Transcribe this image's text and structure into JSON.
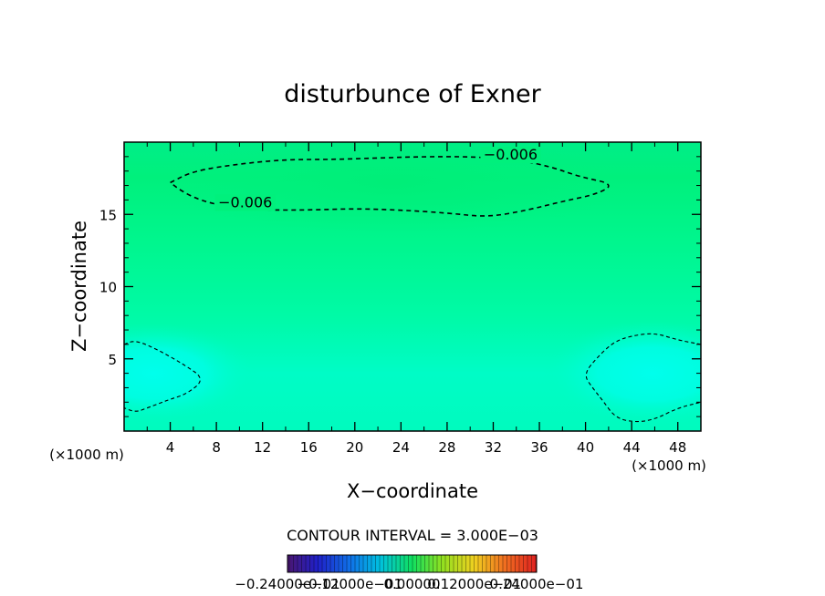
{
  "chart_data": {
    "type": "heatmap",
    "title": "disturbunce of Exner",
    "xlabel": "X−coordinate",
    "ylabel": "Z−coordinate",
    "x_unit": "(×1000 m)",
    "y_unit": "(×1000 m)",
    "xlim": [
      0,
      50
    ],
    "ylim": [
      0,
      20
    ],
    "x_ticks": [
      4,
      8,
      12,
      16,
      20,
      24,
      28,
      32,
      36,
      40,
      44,
      48
    ],
    "y_ticks": [
      5,
      10,
      15
    ],
    "contour_interval_text": "CONTOUR INTERVAL = 3.000E−03",
    "colorbar_labels": [
      "−0.24000e−01",
      "−0.12000e−01",
      "0.00000",
      "0.12000e−01",
      "0.24000e−01"
    ],
    "colorbar_range": [
      -0.024,
      0.024
    ],
    "contours": [
      {
        "level": -0.006,
        "label": "−0.006",
        "style": "dashed",
        "label_positions": [
          [
            33.5,
            18.8
          ],
          [
            10.5,
            15.5
          ]
        ],
        "path": [
          [
            4,
            17.2
          ],
          [
            6,
            18.0
          ],
          [
            10,
            18.5
          ],
          [
            14,
            18.8
          ],
          [
            18,
            18.8
          ],
          [
            22,
            18.9
          ],
          [
            26,
            19.0
          ],
          [
            30,
            19.0
          ],
          [
            34,
            18.8
          ],
          [
            37,
            18.3
          ],
          [
            39.5,
            17.6
          ],
          [
            42.5,
            17.1
          ],
          [
            41,
            16.4
          ],
          [
            38,
            15.9
          ],
          [
            35,
            15.3
          ],
          [
            31.5,
            14.8
          ],
          [
            28,
            15.1
          ],
          [
            24,
            15.3
          ],
          [
            20,
            15.4
          ],
          [
            16,
            15.3
          ],
          [
            12,
            15.3
          ],
          [
            9,
            15.5
          ],
          [
            6.5,
            16.0
          ],
          [
            5,
            16.6
          ],
          [
            4,
            17.2
          ]
        ]
      },
      {
        "level": -0.003,
        "style": "dashed",
        "path": [
          [
            0,
            6.0
          ],
          [
            1,
            6.3
          ],
          [
            3,
            5.6
          ],
          [
            5.2,
            4.6
          ],
          [
            7,
            3.6
          ],
          [
            5.5,
            2.6
          ],
          [
            4,
            2.2
          ],
          [
            3,
            1.9
          ],
          [
            2,
            1.6
          ],
          [
            1,
            1.3
          ],
          [
            0,
            1.6
          ]
        ]
      },
      {
        "level": -0.003,
        "style": "dashed",
        "path": [
          [
            50,
            6.0
          ],
          [
            48,
            6.3
          ],
          [
            46,
            6.8
          ],
          [
            44,
            6.6
          ],
          [
            42.5,
            6.2
          ],
          [
            41,
            5.1
          ],
          [
            39.8,
            3.9
          ],
          [
            40.7,
            2.9
          ],
          [
            41.5,
            2.1
          ],
          [
            42.6,
            0.9
          ],
          [
            44.3,
            0.6
          ],
          [
            46,
            0.8
          ],
          [
            48,
            1.6
          ],
          [
            50,
            2.0
          ]
        ]
      }
    ],
    "colors": {
      "field_top": "#00f27c",
      "field_mid": "#00fa9c",
      "field_low": "#00fcd2",
      "field_blob": "#00fde8",
      "contour": "#000000"
    }
  }
}
